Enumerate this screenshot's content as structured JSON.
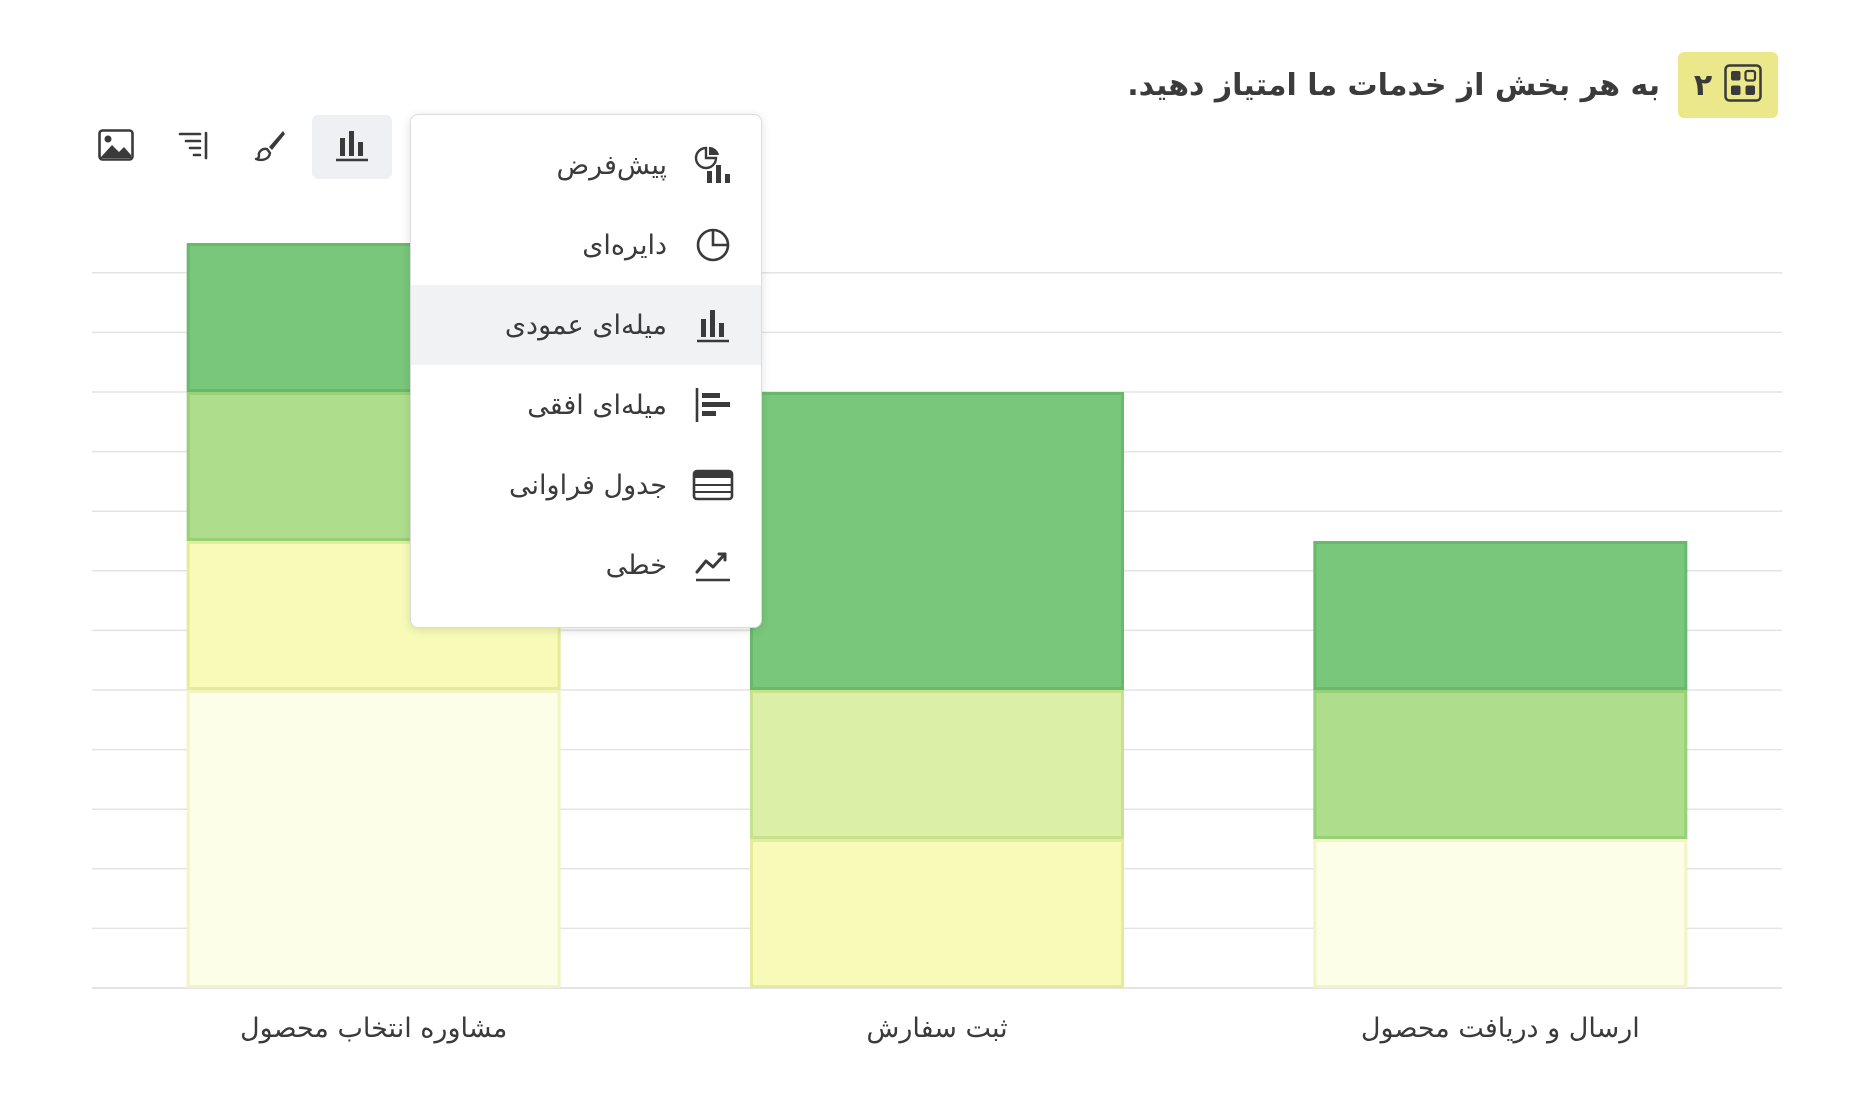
{
  "question": {
    "number": "۲",
    "title": "به هر بخش از خدمات ما امتیاز دهید.",
    "badge_icon": "grid-icon",
    "badge_color": "#ebe88c"
  },
  "toolbar": {
    "buttons": [
      {
        "name": "image-icon",
        "active": false
      },
      {
        "name": "sort-icon",
        "active": false
      },
      {
        "name": "brush-icon",
        "active": false
      },
      {
        "name": "bar-chart-icon",
        "active": true
      }
    ]
  },
  "chart_type_menu": {
    "selected": "میله‌ای عمودی",
    "items": [
      {
        "label": "پیش‌فرض",
        "icon": "pie-bar-icon"
      },
      {
        "label": "دایره‌ای",
        "icon": "pie-icon"
      },
      {
        "label": "میله‌ای عمودی",
        "icon": "vertical-bar-icon"
      },
      {
        "label": "میله‌ای افقی",
        "icon": "horizontal-bar-icon"
      },
      {
        "label": "جدول فراوانی",
        "icon": "table-icon"
      },
      {
        "label": "خطی",
        "icon": "line-chart-icon"
      }
    ]
  },
  "chart_data": {
    "type": "bar",
    "stacked": true,
    "categories": [
      "مشاوره انتخاب محصول",
      "ثبت سفارش",
      "ارسال و دریافت محصول"
    ],
    "ylim": [
      0,
      10
    ],
    "grid": true,
    "series": [
      {
        "color": "#fdfee8",
        "border": "#f2f4c6",
        "values": [
          4,
          0,
          2
        ]
      },
      {
        "color": "#f7fbb7",
        "border": "#e5ec98",
        "values": [
          2,
          2,
          0
        ]
      },
      {
        "color": "#dcefa6",
        "border": "#c6e28c",
        "values": [
          0,
          2,
          0
        ]
      },
      {
        "color": "#aede8c",
        "border": "#97d077",
        "values": [
          2,
          0,
          2
        ]
      },
      {
        "color": "#79c77a",
        "border": "#69b96b",
        "values": [
          2,
          4,
          2
        ]
      }
    ]
  }
}
